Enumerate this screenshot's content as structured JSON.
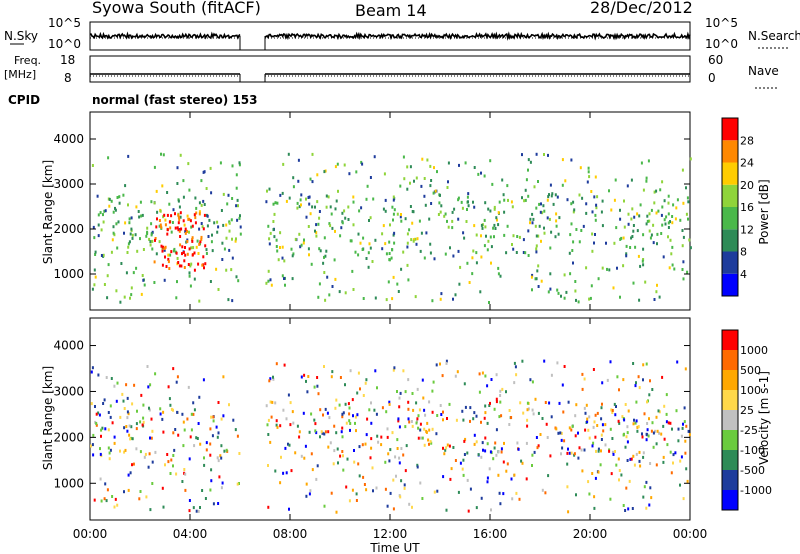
{
  "header": {
    "station": "Syowa South (fitACF)",
    "beam": "Beam 14",
    "date": "28/Dec/2012"
  },
  "top_panel": {
    "left_label": "N.Sky",
    "left_ticks": [
      "10^5",
      "10^0"
    ],
    "right_label": "N.Search",
    "right_ticks": [
      "10^5",
      "10^0"
    ]
  },
  "freq_panel": {
    "left_label_1": "Freq.",
    "left_label_2": "[MHz]",
    "left_ticks": [
      "18",
      "8"
    ],
    "right_label": "Nave",
    "right_ticks": [
      "60",
      "0"
    ]
  },
  "cpid": {
    "label": "CPID",
    "value": "normal (fast stereo) 153"
  },
  "chart_data": [
    {
      "type": "heatmap",
      "name": "power",
      "ylabel": "Slant Range [km]",
      "yticks": [
        "4000",
        "3000",
        "2000",
        "1000"
      ],
      "ylim": [
        200,
        4600
      ],
      "xlim": [
        0,
        24
      ],
      "colorbar_label": "Power [dB]",
      "colorbar_ticks": [
        "28",
        "24",
        "20",
        "16",
        "12",
        "8",
        "4"
      ],
      "colors": [
        "#0000ff",
        "#1e3c9c",
        "#2e8b57",
        "#4ab84a",
        "#8fd43a",
        "#ffcc00",
        "#ff8800",
        "#ff0000"
      ],
      "data_gap_hours": [
        6.0,
        7.0
      ],
      "enhanced_echo_hours": [
        2.5,
        4.6
      ]
    },
    {
      "type": "heatmap",
      "name": "velocity",
      "ylabel": "Slant Range [km]",
      "yticks": [
        "4000",
        "3000",
        "2000",
        "1000"
      ],
      "ylim": [
        200,
        4600
      ],
      "xlim": [
        0,
        24
      ],
      "colorbar_label": "Velocity [m s-1]",
      "colorbar_ticks": [
        "1000",
        "500",
        "100",
        "25",
        "-25",
        "-100",
        "-500",
        "-1000"
      ],
      "colors": [
        "#0000ff",
        "#1e3c9c",
        "#2e8b57",
        "#6acb3e",
        "#c0c0c0",
        "#ffd84a",
        "#ffa800",
        "#ff6a00",
        "#ff0000"
      ],
      "data_gap_hours": [
        6.0,
        7.0
      ]
    }
  ],
  "x_axis": {
    "ticks": [
      "00:00",
      "04:00",
      "08:00",
      "12:00",
      "16:00",
      "20:00",
      "00:00"
    ],
    "label": "Time UT"
  }
}
